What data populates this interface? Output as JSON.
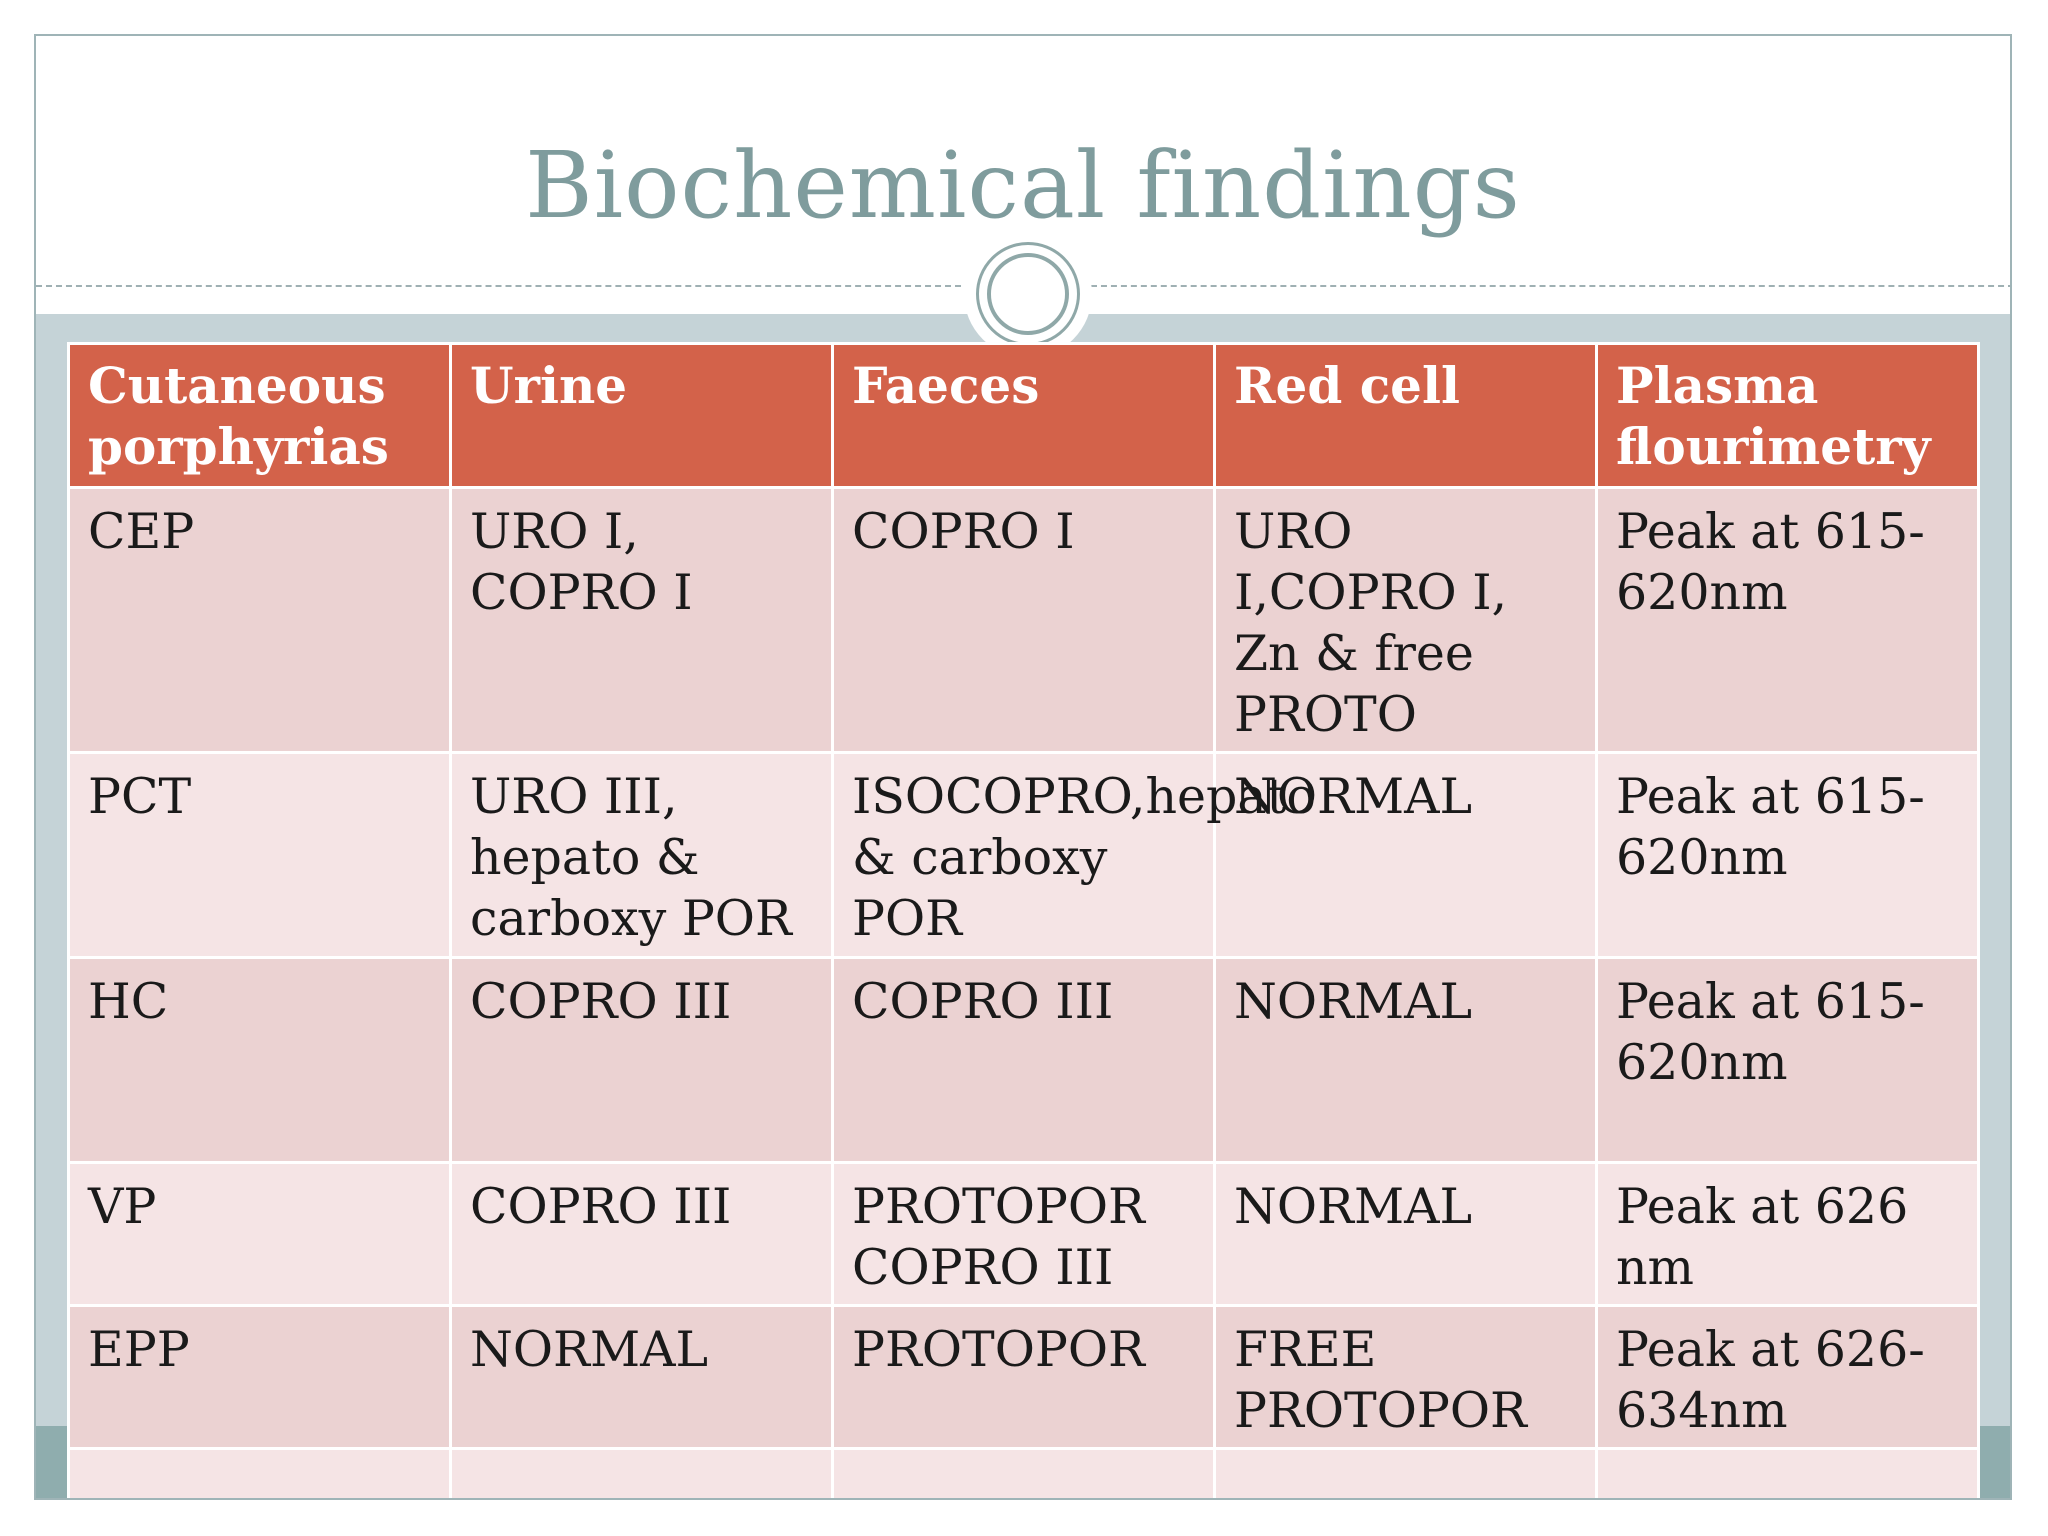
{
  "slide": {
    "title": "Biochemical findings"
  },
  "table": {
    "headers": [
      "Cutaneous porphyrias",
      "Urine",
      "Faeces",
      "Red cell",
      "Plasma flourimetry"
    ],
    "rows": [
      [
        "CEP",
        "URO I, COPRO I",
        "COPRO I",
        "URO I,COPRO I, Zn & free PROTO",
        "Peak at 615-620nm"
      ],
      [
        "PCT",
        "URO III, hepato & carboxy POR",
        "ISOCOPRO,hepato & carboxy POR",
        "NORMAL",
        "Peak at 615-620nm"
      ],
      [
        "HC",
        "COPRO III",
        "COPRO III",
        "NORMAL",
        "Peak at 615-620nm"
      ],
      [
        "VP",
        "COPRO III",
        "PROTOPOR COPRO III",
        "NORMAL",
        "Peak at 626 nm"
      ],
      [
        "EPP",
        "NORMAL",
        "PROTOPOR",
        "FREE PROTOPOR",
        "Peak at 626-634nm"
      ],
      [
        "",
        "",
        "",
        "",
        ""
      ]
    ]
  },
  "colors": {
    "header_bg": "#d3624a",
    "row_dark": "#ebd2d2",
    "row_light": "#f5e4e5",
    "title_text": "#7f9c9d",
    "frame_bg": "#c5d3d7",
    "bottom_band": "#8fadae"
  },
  "icons": [
    "circle-ornament-icon"
  ]
}
